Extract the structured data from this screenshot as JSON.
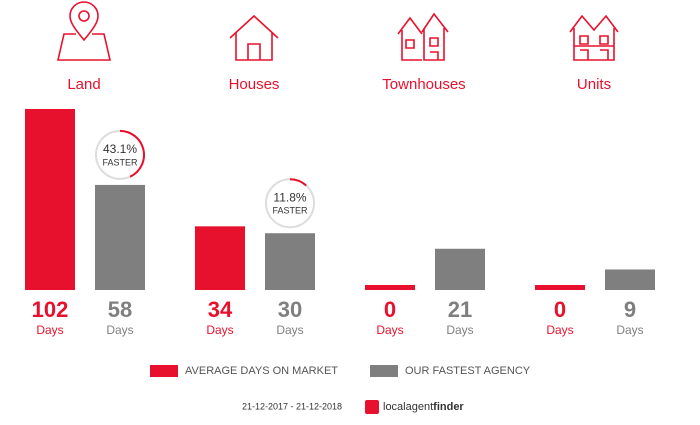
{
  "chart_data": {
    "type": "bar",
    "categories": [
      "Land",
      "Houses",
      "Townhouses",
      "Units"
    ],
    "series": [
      {
        "name": "AVERAGE DAYS ON MARKET",
        "color": "#e8112d",
        "values": [
          102,
          34,
          0,
          0
        ]
      },
      {
        "name": "OUR FASTEST AGENCY",
        "color": "#7f7f7f",
        "values": [
          58,
          30,
          21,
          9
        ]
      }
    ],
    "unit_label": "Days",
    "badges": [
      {
        "value": 43.1,
        "label": "43.1%",
        "text": "FASTER"
      },
      {
        "value": 11.8,
        "label": "11.8%",
        "text": "FASTER"
      }
    ],
    "date_range": "21-12-2017 - 21-12-2018",
    "brand": {
      "part1": "localagent",
      "part2": "finder"
    }
  }
}
